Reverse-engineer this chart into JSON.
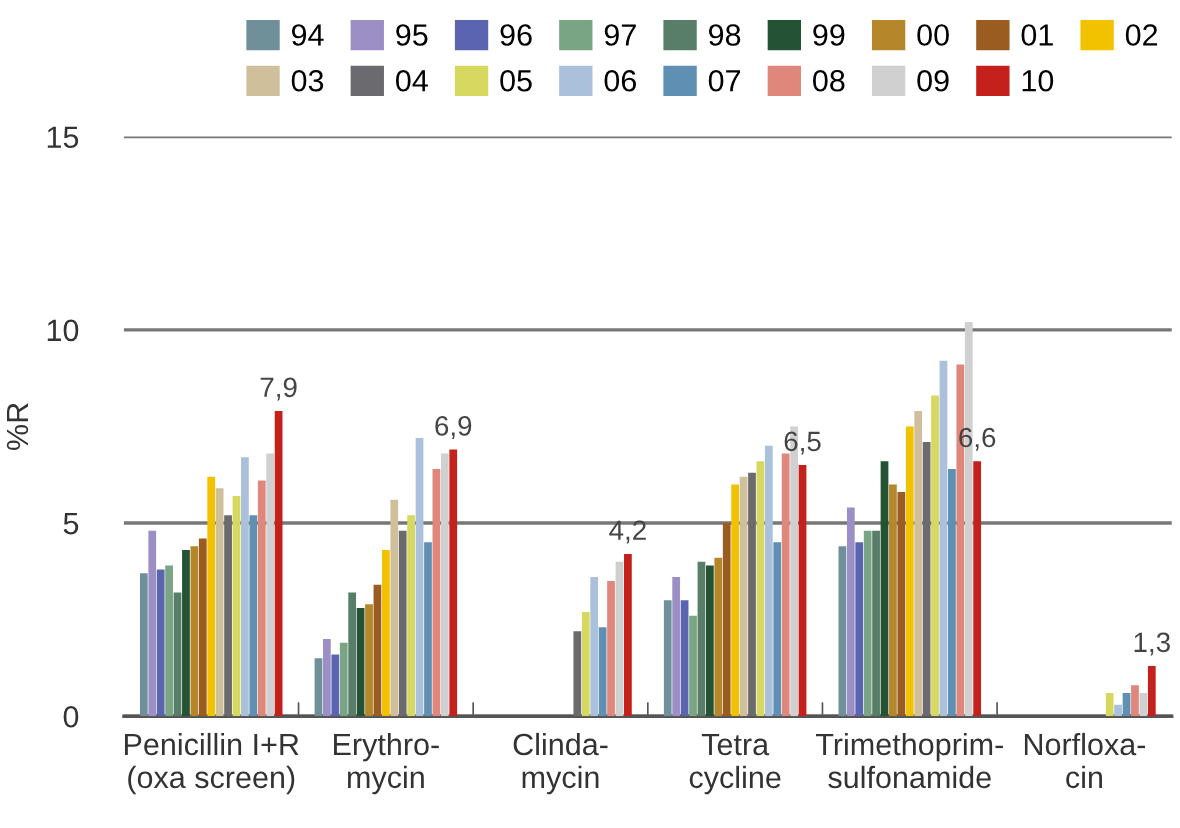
{
  "chart_data": {
    "type": "bar",
    "ylabel": "%R",
    "categories": [
      "Penicillin I+R\n(oxa screen)",
      "Erythro-\nmycin",
      "Clinda-\nmycin",
      "Tetra\ncycline",
      "Trimethoprim-\nsulfonamide",
      "Norfloxa-\ncin"
    ],
    "ylim": [
      0,
      15
    ],
    "yticks": [
      0,
      5,
      10,
      15
    ],
    "grid": "y",
    "legend": "top right",
    "series": [
      {
        "name": "94",
        "color": "#6f8f99",
        "values": [
          3.7,
          1.5,
          null,
          3.0,
          4.4,
          null
        ]
      },
      {
        "name": "95",
        "color": "#9b8fc6",
        "values": [
          4.8,
          2.0,
          null,
          3.6,
          5.4,
          null
        ]
      },
      {
        "name": "96",
        "color": "#5a64b0",
        "values": [
          3.8,
          1.6,
          null,
          3.0,
          4.5,
          null
        ]
      },
      {
        "name": "97",
        "color": "#7aa585",
        "values": [
          3.9,
          1.9,
          null,
          2.6,
          4.8,
          null
        ]
      },
      {
        "name": "98",
        "color": "#587d69",
        "values": [
          3.2,
          3.2,
          null,
          4.0,
          4.8,
          null
        ]
      },
      {
        "name": "99",
        "color": "#235234",
        "values": [
          4.3,
          2.8,
          null,
          3.9,
          6.6,
          null
        ]
      },
      {
        "name": "00",
        "color": "#b5862a",
        "values": [
          4.4,
          2.9,
          null,
          4.1,
          6.0,
          null
        ]
      },
      {
        "name": "01",
        "color": "#9b5c22",
        "values": [
          4.6,
          3.4,
          null,
          5.0,
          5.8,
          null
        ]
      },
      {
        "name": "02",
        "color": "#f2c200",
        "values": [
          6.2,
          4.3,
          null,
          6.0,
          7.5,
          null
        ]
      },
      {
        "name": "03",
        "color": "#cfc09b",
        "values": [
          5.9,
          5.6,
          null,
          6.2,
          7.9,
          null
        ]
      },
      {
        "name": "04",
        "color": "#6b6b6f",
        "values": [
          5.2,
          4.8,
          2.2,
          6.3,
          7.1,
          null
        ]
      },
      {
        "name": "05",
        "color": "#d6d85f",
        "values": [
          5.7,
          5.2,
          2.7,
          6.6,
          8.3,
          0.6
        ]
      },
      {
        "name": "06",
        "color": "#abc0da",
        "values": [
          6.7,
          7.2,
          3.6,
          7.0,
          9.2,
          0.3
        ]
      },
      {
        "name": "07",
        "color": "#5f8fb2",
        "values": [
          5.2,
          4.5,
          2.3,
          4.5,
          6.4,
          0.6
        ]
      },
      {
        "name": "08",
        "color": "#e0877c",
        "values": [
          6.1,
          6.4,
          3.5,
          6.8,
          9.1,
          0.8
        ]
      },
      {
        "name": "09",
        "color": "#d0d0d0",
        "values": [
          6.8,
          6.8,
          4.0,
          7.5,
          10.2,
          0.6
        ]
      },
      {
        "name": "10",
        "color": "#c4201c",
        "values": [
          7.9,
          6.9,
          4.2,
          6.5,
          6.6,
          1.3
        ],
        "value_labels": [
          "7,9",
          "6,9",
          "4,2",
          "6,5",
          "6,6",
          "1,3"
        ]
      }
    ]
  }
}
